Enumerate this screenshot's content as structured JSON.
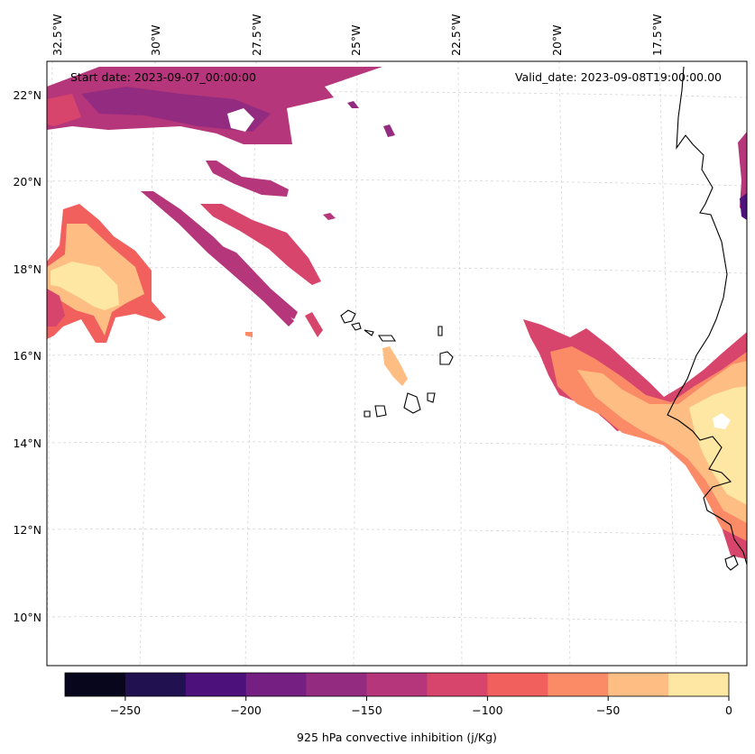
{
  "map": {
    "start_date_text": "Start date: 2023-09-07_00:00:00",
    "valid_date_text": "Valid_date: 2023-09-08T19:00:00.00",
    "lon_labels": [
      "32.5°W",
      "30°W",
      "27.5°W",
      "25°W",
      "22.5°W",
      "20°W",
      "17.5°W"
    ],
    "lat_labels": [
      "22°N",
      "20°N",
      "18°N",
      "16°N",
      "14°N",
      "12°N",
      "10°N"
    ]
  },
  "colorbar": {
    "label": "925 hPa convective inhibition (j/Kg)",
    "tick_labels": [
      "−250",
      "−200",
      "−150",
      "−100",
      "−50",
      "0"
    ],
    "bins": [
      -275,
      -250,
      -225,
      -200,
      -175,
      -150,
      -125,
      -100,
      -75,
      -50,
      -25,
      0
    ],
    "colors": [
      "#07061c",
      "#221150",
      "#4d117b",
      "#741f81",
      "#932b80",
      "#b5367a",
      "#d8456c",
      "#f1605d",
      "#fb8b67",
      "#febd82",
      "#fee7a3"
    ]
  }
}
